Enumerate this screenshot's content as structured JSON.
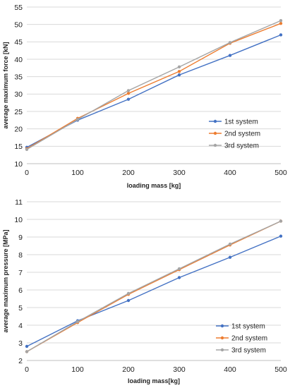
{
  "chart_data": [
    {
      "type": "line",
      "xlabel": "loading mass [kg]",
      "ylabel": "average maximum force [kN]",
      "x": [
        0,
        100,
        200,
        300,
        400,
        500
      ],
      "xlim": [
        0,
        500
      ],
      "ylim": [
        10,
        55
      ],
      "y_ticks": [
        10,
        15,
        20,
        25,
        30,
        35,
        40,
        45,
        50,
        55
      ],
      "grid": "horizontal",
      "legend_position": "right",
      "series": [
        {
          "name": "1st system",
          "color": "#4472c4",
          "values": [
            14.7,
            22.5,
            28.5,
            35.5,
            41.1,
            47.0
          ]
        },
        {
          "name": "2nd system",
          "color": "#ed7d31",
          "values": [
            14.3,
            23.0,
            30.2,
            36.5,
            44.6,
            50.3
          ]
        },
        {
          "name": "3rd system",
          "color": "#a5a5a5",
          "values": [
            14.1,
            22.7,
            31.0,
            37.8,
            44.8,
            51.1
          ]
        }
      ]
    },
    {
      "type": "line",
      "xlabel": "loading mass[kg]",
      "ylabel": "average maximum pressure [MPa]",
      "x": [
        0,
        100,
        200,
        300,
        400,
        500
      ],
      "xlim": [
        0,
        500
      ],
      "ylim": [
        2,
        11
      ],
      "y_ticks": [
        2,
        3,
        4,
        5,
        6,
        7,
        8,
        9,
        10,
        11
      ],
      "grid": "horizontal",
      "legend_position": "bottom-right",
      "series": [
        {
          "name": "1st system",
          "color": "#4472c4",
          "values": [
            2.8,
            4.25,
            5.4,
            6.7,
            7.85,
            9.05
          ]
        },
        {
          "name": "2nd system",
          "color": "#ed7d31",
          "values": [
            2.5,
            4.15,
            5.75,
            7.15,
            8.55,
            9.9
          ]
        },
        {
          "name": "3rd system",
          "color": "#a5a5a5",
          "values": [
            2.5,
            4.2,
            5.8,
            7.2,
            8.6,
            9.9
          ]
        }
      ]
    }
  ]
}
